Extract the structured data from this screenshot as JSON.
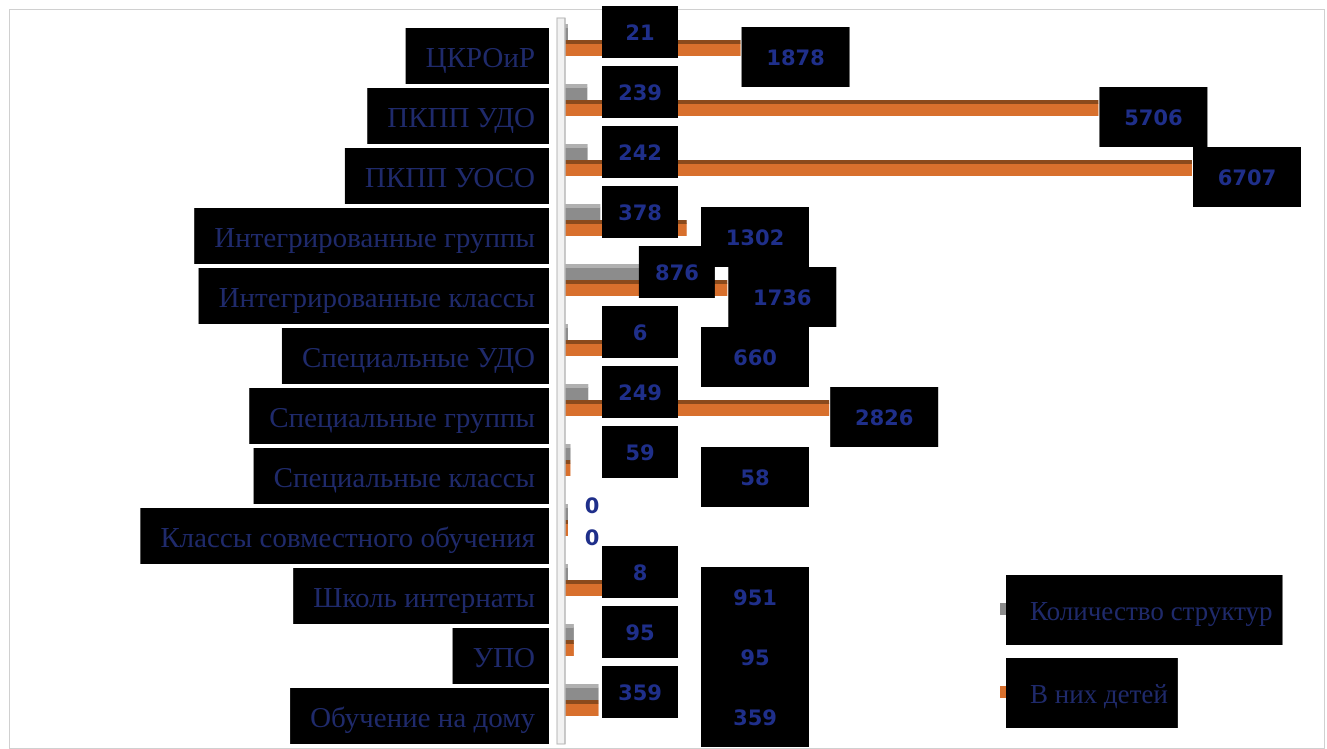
{
  "chart_data": {
    "type": "bar",
    "orientation": "horizontal",
    "categories": [
      "ЦКРОиР",
      "ПКПП УДО",
      "ПКПП УОСО",
      "Интегрированные группы",
      "Интегрированные классы",
      "Специальные УДО",
      "Специальные группы",
      "Специальные классы",
      "Классы совместного обучения",
      "Школь  интернаты",
      "УПО",
      "Обучение на дому"
    ],
    "series": [
      {
        "name": "Количество структур",
        "color": "#8c8c8c",
        "values": [
          21,
          239,
          242,
          378,
          876,
          6,
          249,
          59,
          0,
          8,
          95,
          359
        ]
      },
      {
        "name": "В них детей",
        "color": "#d8702d",
        "values": [
          1878,
          5706,
          6707,
          1302,
          1736,
          660,
          2826,
          58,
          0,
          951,
          95,
          359
        ]
      }
    ],
    "title": "",
    "xlabel": "",
    "ylabel": "",
    "legend_position": "right"
  },
  "colors": {
    "label_box": "#000000",
    "category_text": "#1f2a6b",
    "value_text": "#1f2f8a",
    "axis": "#b8b8b8"
  }
}
